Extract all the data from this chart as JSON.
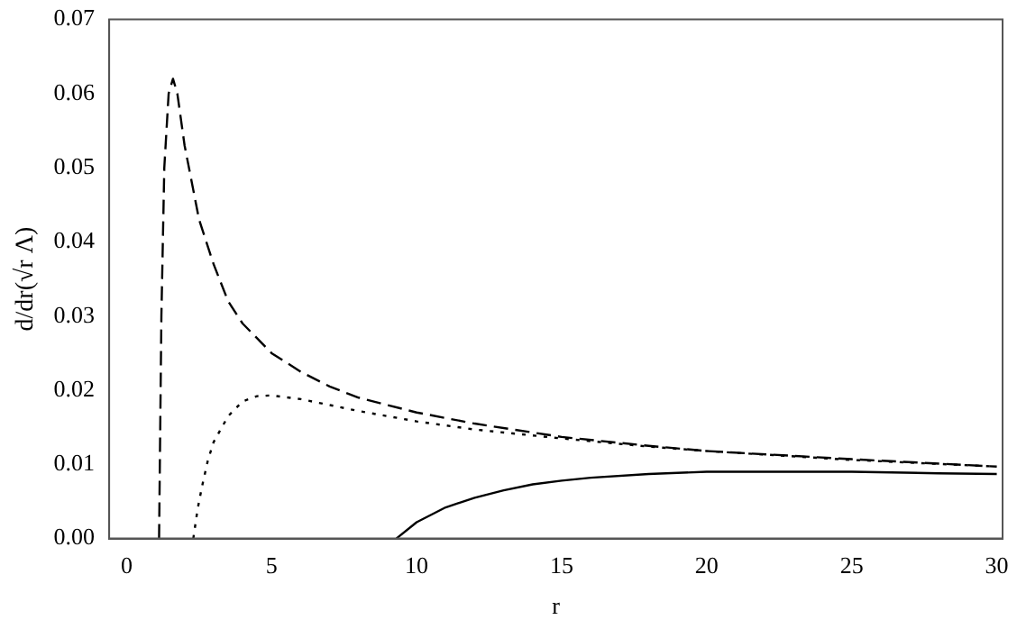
{
  "chart_data": {
    "type": "line",
    "xlabel": "r",
    "ylabel": "d/dr(√r Λ)",
    "xlim": [
      -0.6,
      30.2
    ],
    "ylim": [
      0,
      0.07
    ],
    "xticks": [
      0,
      5,
      10,
      15,
      20,
      25,
      30
    ],
    "yticks": [
      {
        "value": 0,
        "label": "0.00"
      },
      {
        "value": 0.01,
        "label": "0.01"
      },
      {
        "value": 0.02,
        "label": "0.02"
      },
      {
        "value": 0.03,
        "label": "0.03"
      },
      {
        "value": 0.04,
        "label": "0.04"
      },
      {
        "value": 0.05,
        "label": "0.05"
      },
      {
        "value": 0.06,
        "label": "0.06"
      },
      {
        "value": 0.07,
        "label": "0.07"
      }
    ],
    "grid": false,
    "legend": false,
    "marker": "none",
    "series": [
      {
        "color": "#000000",
        "line_style": "dashed",
        "x": [
          1.12,
          1.2,
          1.3,
          1.45,
          1.6,
          1.75,
          2,
          2.5,
          3,
          3.5,
          4,
          5,
          6,
          7,
          8,
          10,
          12,
          15,
          18,
          20,
          25,
          30
        ],
        "values": [
          0,
          0.03,
          0.05,
          0.06,
          0.062,
          0.06,
          0.053,
          0.043,
          0.037,
          0.032,
          0.029,
          0.025,
          0.0225,
          0.0205,
          0.019,
          0.017,
          0.0155,
          0.0137,
          0.0125,
          0.0118,
          0.0107,
          0.0097
        ]
      },
      {
        "color": "#000000",
        "line_style": "dotted",
        "x": [
          2.3,
          2.45,
          2.6,
          2.8,
          3,
          3.5,
          4,
          4.5,
          5,
          6,
          7,
          8,
          10,
          12,
          15,
          18,
          20,
          25,
          30
        ],
        "values": [
          0,
          0.004,
          0.007,
          0.0105,
          0.013,
          0.0165,
          0.0185,
          0.0192,
          0.0193,
          0.0188,
          0.018,
          0.0172,
          0.0158,
          0.0147,
          0.0135,
          0.0124,
          0.0118,
          0.0106,
          0.0097
        ]
      },
      {
        "color": "#000000",
        "line_style": "solid",
        "x": [
          9.3,
          10,
          11,
          12,
          13,
          14,
          15,
          16,
          18,
          20,
          22,
          25,
          28,
          30
        ],
        "values": [
          0,
          0.0022,
          0.0042,
          0.0055,
          0.0065,
          0.0073,
          0.0078,
          0.0082,
          0.0087,
          0.009,
          0.009,
          0.009,
          0.0088,
          0.0087
        ]
      }
    ]
  }
}
